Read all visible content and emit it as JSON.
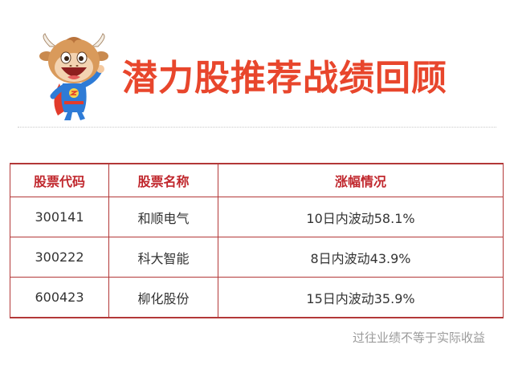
{
  "header": {
    "title": "潜力股推荐战绩回顾"
  },
  "mascot_icon": "bull-superhero-mascot-icon",
  "colors": {
    "title": "#e8462c",
    "table_border": "#b33838",
    "header_text": "#c0272d",
    "body_text": "#333333",
    "footnote": "#9a9a9a"
  },
  "table": {
    "columns": [
      "股票代码",
      "股票名称",
      "涨幅情况"
    ],
    "rows": [
      {
        "code": "300141",
        "name": "和顺电气",
        "performance": "10日内波动58.1%"
      },
      {
        "code": "300222",
        "name": "科大智能",
        "performance": "8日内波动43.9%"
      },
      {
        "code": "600423",
        "name": "柳化股份",
        "performance": "15日内波动35.9%"
      }
    ]
  },
  "footnote": "过往业绩不等于实际收益"
}
